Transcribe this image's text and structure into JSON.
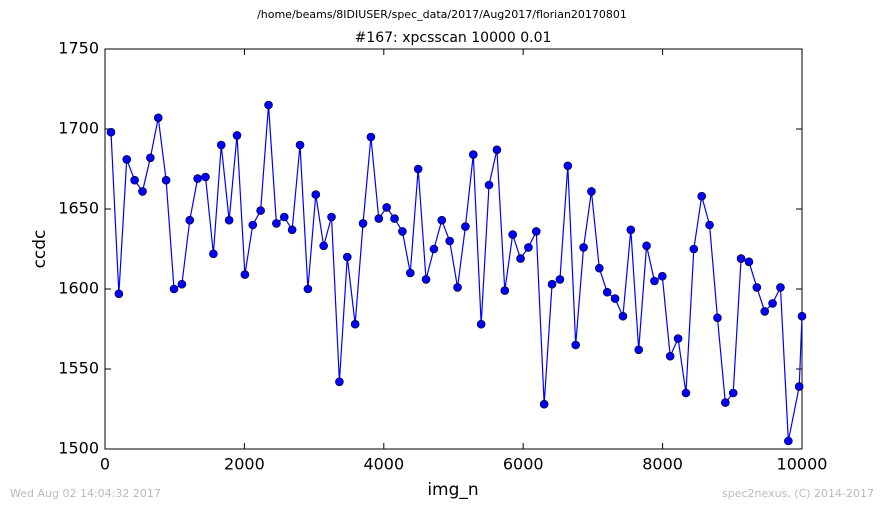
{
  "chart_data": {
    "type": "line",
    "suptitle": "/home/beams/8IDIUSER/spec_data/2017/Aug2017/florian20170801",
    "title": "#167: xpcsscan 10000 0.01",
    "x_label": "img_n",
    "y_label": "ccdc",
    "footer_left": "Wed Aug 02 14:04:32 2017",
    "footer_right": "spec2nexus, (C) 2014-2017",
    "x": [
      86,
      199,
      312,
      425,
      538,
      651,
      764,
      877,
      990,
      1103,
      1216,
      1329,
      1442,
      1555,
      1668,
      1781,
      1894,
      2007,
      2120,
      2233,
      2346,
      2459,
      2572,
      2685,
      2798,
      2911,
      3024,
      3137,
      3250,
      3363,
      3476,
      3589,
      3702,
      3815,
      3928,
      4041,
      4154,
      4267,
      4380,
      4493,
      4606,
      4719,
      4832,
      4945,
      5058,
      5171,
      5284,
      5397,
      5510,
      5623,
      5736,
      5849,
      5962,
      6075,
      6188,
      6301,
      6414,
      6527,
      6640,
      6753,
      6866,
      6979,
      7092,
      7205,
      7318,
      7431,
      7544,
      7657,
      7770,
      7883,
      7996,
      8109,
      8222,
      8335,
      8448,
      8561,
      8674,
      8787,
      8900,
      9013,
      9126,
      9239,
      9352,
      9465,
      9578,
      9691,
      9804,
      9960,
      10000
    ],
    "series": [
      {
        "color": "#0000ff",
        "marker_color": "#0000ff",
        "values": [
          1698,
          1597,
          1681,
          1668,
          1661,
          1682,
          1707,
          1668,
          1600,
          1603,
          1643,
          1669,
          1670,
          1622,
          1690,
          1643,
          1696,
          1609,
          1640,
          1649,
          1715,
          1641,
          1645,
          1637,
          1690,
          1600,
          1659,
          1627,
          1645,
          1542,
          1620,
          1578,
          1641,
          1695,
          1644,
          1651,
          1644,
          1636,
          1610,
          1675,
          1606,
          1625,
          1643,
          1630,
          1601,
          1639,
          1684,
          1578,
          1665,
          1687,
          1599,
          1634,
          1619,
          1626,
          1636,
          1528,
          1603,
          1606,
          1677,
          1565,
          1626,
          1661,
          1613,
          1598,
          1594,
          1583,
          1637,
          1562,
          1627,
          1605,
          1608,
          1558,
          1569,
          1535,
          1625,
          1658,
          1640,
          1582,
          1529,
          1535,
          1619,
          1617,
          1601,
          1586,
          1591,
          1601,
          1505,
          1539,
          1583
        ]
      }
    ],
    "xlim": [
      0,
      10000
    ],
    "xticks": [
      0,
      2000,
      4000,
      6000,
      8000,
      10000
    ],
    "ylim": [
      1500,
      1750
    ],
    "yticks": [
      1500,
      1550,
      1600,
      1650,
      1700,
      1750
    ],
    "grid": false
  }
}
